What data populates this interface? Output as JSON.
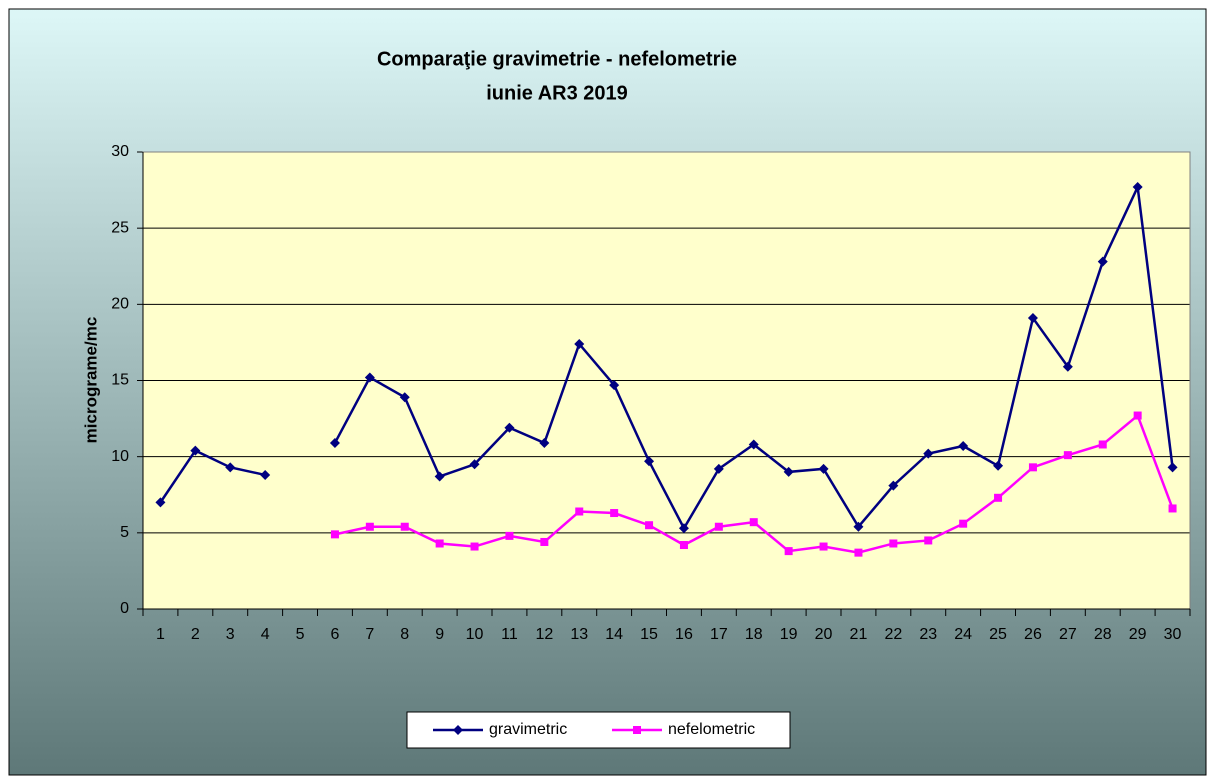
{
  "chart_data": {
    "type": "line",
    "title": "Comparaţie gravimetrie - nefelometrie",
    "subtitle": "iunie AR3 2019",
    "y_label": "micrograme/mc",
    "categories": [
      "1",
      "2",
      "3",
      "4",
      "5",
      "6",
      "7",
      "8",
      "9",
      "10",
      "11",
      "12",
      "13",
      "14",
      "15",
      "16",
      "17",
      "18",
      "19",
      "20",
      "21",
      "22",
      "23",
      "24",
      "25",
      "26",
      "27",
      "28",
      "29",
      "30"
    ],
    "series": [
      {
        "name": "gravimetric",
        "color": "#000080",
        "marker": "diamond",
        "values": [
          7.0,
          10.4,
          9.3,
          8.8,
          null,
          10.9,
          15.2,
          13.9,
          8.7,
          9.5,
          11.9,
          10.9,
          17.4,
          14.7,
          9.7,
          5.3,
          9.2,
          10.8,
          9.0,
          9.2,
          5.4,
          8.1,
          10.2,
          10.7,
          9.4,
          19.1,
          15.9,
          22.8,
          27.7,
          9.3
        ]
      },
      {
        "name": "nefelometric",
        "color": "#ff00ff",
        "marker": "square",
        "values": [
          null,
          null,
          null,
          null,
          null,
          4.9,
          5.4,
          5.4,
          4.3,
          4.1,
          4.8,
          4.4,
          6.4,
          6.3,
          5.5,
          4.2,
          5.4,
          5.7,
          3.8,
          4.1,
          3.7,
          4.3,
          4.5,
          5.6,
          7.3,
          9.3,
          10.1,
          10.8,
          12.7,
          6.6
        ]
      }
    ],
    "ylim": [
      0,
      30
    ],
    "yticks": [
      0,
      5,
      10,
      15,
      20,
      25,
      30
    ],
    "grid": true,
    "legend": "bottom",
    "plot_background": "#ffffcc"
  }
}
